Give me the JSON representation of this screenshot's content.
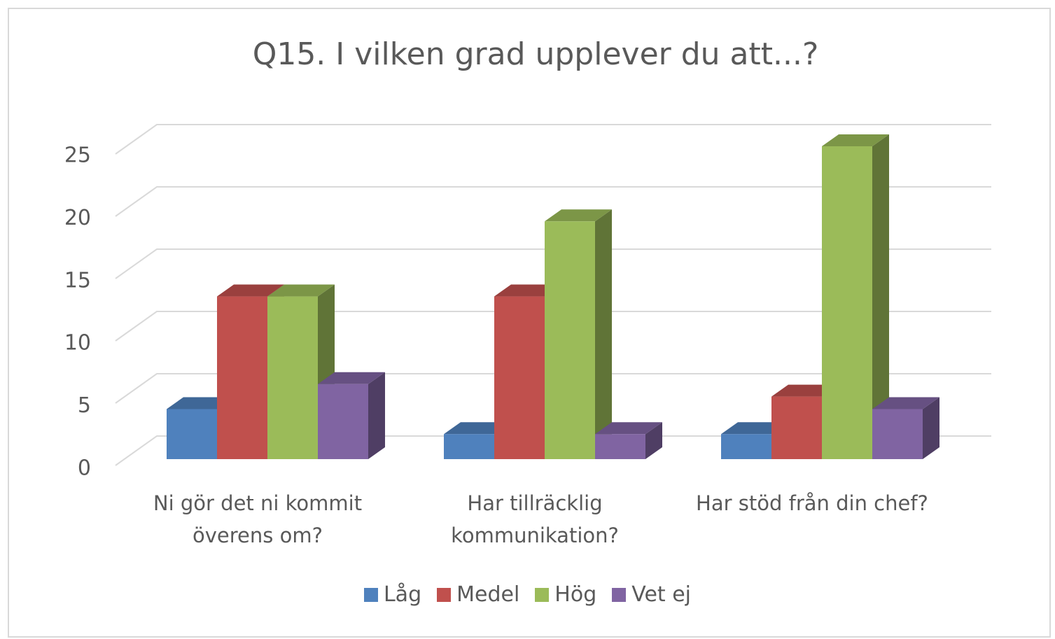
{
  "chart_data": {
    "type": "bar3d",
    "title": "Q15. I vilken grad upplever du att...?",
    "categories": [
      "Ni gör det ni kommit överens om?",
      "Har tillräcklig kommunikation?",
      "Har stöd från din chef?"
    ],
    "series": [
      {
        "name": "Låg",
        "color": "#4f81bd",
        "values": [
          4,
          2,
          2
        ]
      },
      {
        "name": "Medel",
        "color": "#c0504d",
        "values": [
          13,
          13,
          5
        ]
      },
      {
        "name": "Hög",
        "color": "#9bbb59",
        "values": [
          13,
          19,
          25
        ]
      },
      {
        "name": "Vet ej",
        "color": "#8064a2",
        "values": [
          6,
          2,
          4
        ]
      }
    ],
    "ylim": [
      0,
      25
    ],
    "yticks": [
      0,
      5,
      10,
      15,
      20,
      25
    ],
    "grid": true,
    "legend": "bottom"
  }
}
